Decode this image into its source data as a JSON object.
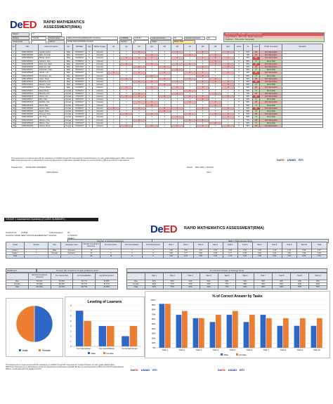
{
  "brand": {
    "logo_dep": "De",
    "logo_ed": "ED"
  },
  "page1": {
    "title_line1": "RAPID MATHEMATICS",
    "title_line2": "ASSESSMENT(RMA)",
    "info": {
      "region_label": "Region",
      "region_value": "XI",
      "division_label": "Division",
      "division_value": "TAGUM",
      "school_label": "School Name",
      "school_value": "NEW VISAYAS ELEMENTARY SCHOOL",
      "lrn_label": "LORENE",
      "lrn_value": "125794",
      "class_label": "Class Enrollment",
      "class_value": "32",
      "grade_label": "Grade Level",
      "grade_value": "1",
      "adviser_label": "Adviser",
      "adviser_value": "ROSE ANN HORTERA AGAPAY",
      "section_label": "Section",
      "section_value": "1",
      "test_label": "Number Assessed",
      "test_value": "26",
      "status_label": "Status",
      "status_value": "Below 75%"
    },
    "legend_notes": [
      "Not Proficient - 0%-49% / Critical intervention",
      "Low Proficient - 50%-74% / Needs intervention",
      "Proficient - 75%-100% / Not at Risk"
    ],
    "columns": [
      "No.",
      "LRN",
      "Name of Learner",
      "Sex",
      "Birthdate",
      "Age",
      "Mother Tongue",
      "Q1",
      "Q2",
      "Q3",
      "Q4",
      "Q5",
      "Q6",
      "Q7",
      "Q8",
      "Q9",
      "Q10",
      "Score",
      "%",
      "Level",
      "Profile of Learner",
      "Remarks"
    ],
    "rows": [
      [
        "1",
        "126521150001",
        "Aguilar, Andrei",
        "Male",
        "03/26/2017",
        "6",
        "Cebuano",
        "1",
        "1",
        "0",
        "1",
        "1",
        "0",
        "1",
        "0",
        "1",
        "0",
        "6",
        "60%",
        "LP",
        "For Intervention",
        ""
      ],
      [
        "2",
        "126521150002",
        "Aliño, Kenneth",
        "Male",
        "05/12/2017",
        "6",
        "Cebuano",
        "1",
        "1",
        "1",
        "0",
        "1",
        "1",
        "0",
        "1",
        "0",
        "1",
        "7",
        "70%",
        "LP",
        "For Intervention",
        ""
      ],
      [
        "3",
        "126521150003",
        "Baring, James",
        "Male",
        "01/09/2017",
        "6",
        "Cebuano",
        "1",
        "0",
        "0",
        "0",
        "1",
        "0",
        "1",
        "0",
        "0",
        "0",
        "3",
        "30%",
        "NP",
        "For Intervention",
        ""
      ],
      [
        "4",
        "126521150004",
        "Cabrera, John",
        "Male",
        "07/18/2017",
        "6",
        "Cebuano",
        "1",
        "1",
        "1",
        "1",
        "1",
        "1",
        "1",
        "1",
        "0",
        "1",
        "9",
        "90%",
        "P",
        "Not at Risk",
        ""
      ],
      [
        "5",
        "126521150005",
        "Dela Cruz, Mark",
        "Male",
        "11/03/2016",
        "7",
        "Cebuano",
        "1",
        "0",
        "1",
        "0",
        "1",
        "0",
        "0",
        "1",
        "0",
        "0",
        "4",
        "40%",
        "NP",
        "For Intervention",
        ""
      ],
      [
        "6",
        "126521150006",
        "Espinosa, Carl",
        "Male",
        "02/27/2017",
        "6",
        "Cebuano",
        "1",
        "1",
        "0",
        "1",
        "0",
        "1",
        "1",
        "0",
        "1",
        "0",
        "6",
        "60%",
        "LP",
        "For Intervention",
        ""
      ],
      [
        "7",
        "126521150007",
        "Fernandez, Paul",
        "Male",
        "09/14/2017",
        "6",
        "Cebuano",
        "1",
        "1",
        "1",
        "1",
        "1",
        "0",
        "1",
        "1",
        "1",
        "1",
        "9",
        "90%",
        "P",
        "Not at Risk",
        ""
      ],
      [
        "8",
        "126521150008",
        "Garcia, Luis",
        "Male",
        "04/05/2017",
        "6",
        "Cebuano",
        "0",
        "1",
        "0",
        "1",
        "0",
        "1",
        "0",
        "0",
        "1",
        "0",
        "4",
        "40%",
        "NP",
        "For Intervention",
        ""
      ],
      [
        "9",
        "126521150009",
        "Hernandez, Jay",
        "Male",
        "06/22/2017",
        "6",
        "Cebuano",
        "1",
        "1",
        "1",
        "0",
        "1",
        "1",
        "1",
        "0",
        "1",
        "1",
        "8",
        "80%",
        "P",
        "Not at Risk",
        ""
      ],
      [
        "10",
        "126521150010",
        "Lopez, Ryan",
        "Male",
        "12/01/2016",
        "7",
        "Cebuano",
        "1",
        "0",
        "1",
        "1",
        "0",
        "1",
        "0",
        "1",
        "0",
        "1",
        "6",
        "60%",
        "LP",
        "For Intervention",
        ""
      ],
      [
        "11",
        "126521150011",
        "Mendoza, Kyle",
        "Male",
        "08/19/2017",
        "6",
        "Cebuano",
        "1",
        "1",
        "0",
        "0",
        "1",
        "0",
        "1",
        "0",
        "0",
        "0",
        "4",
        "40%",
        "NP",
        "For Intervention",
        ""
      ],
      [
        "12",
        "126521150012",
        "Navarro, Sean",
        "Male",
        "03/30/2017",
        "6",
        "Cebuano",
        "1",
        "1",
        "1",
        "1",
        "0",
        "1",
        "1",
        "1",
        "1",
        "0",
        "8",
        "80%",
        "P",
        "Not at Risk",
        ""
      ],
      [
        "13",
        "126521150013",
        "Ortega, Miguel",
        "Male",
        "10/10/2017",
        "6",
        "Cebuano",
        "1",
        "0",
        "1",
        "0",
        "1",
        "0",
        "1",
        "0",
        "1",
        "0",
        "5",
        "50%",
        "LP",
        "For Intervention",
        ""
      ],
      [
        "14",
        "126521150014",
        "Abad, Maria",
        "Female",
        "01/25/2017",
        "6",
        "Cebuano",
        "1",
        "1",
        "1",
        "1",
        "1",
        "1",
        "0",
        "1",
        "1",
        "1",
        "9",
        "90%",
        "P",
        "Not at Risk",
        ""
      ],
      [
        "15",
        "126521150015",
        "Bautista, Ana",
        "Female",
        "05/06/2017",
        "6",
        "Cebuano",
        "1",
        "1",
        "0",
        "1",
        "1",
        "0",
        "1",
        "1",
        "0",
        "1",
        "7",
        "70%",
        "LP",
        "For Intervention",
        ""
      ],
      [
        "16",
        "126521150016",
        "Castro, Joy",
        "Female",
        "07/11/2017",
        "6",
        "Cebuano",
        "1",
        "0",
        "0",
        "1",
        "0",
        "1",
        "0",
        "0",
        "1",
        "0",
        "4",
        "40%",
        "NP",
        "For Intervention",
        ""
      ],
      [
        "17",
        "126521150017",
        "Diaz, Kate",
        "Female",
        "09/02/2017",
        "6",
        "Cebuano",
        "1",
        "1",
        "1",
        "1",
        "1",
        "1",
        "1",
        "0",
        "1",
        "1",
        "9",
        "90%",
        "P",
        "Not at Risk",
        ""
      ],
      [
        "18",
        "126521150018",
        "Estrada, Liza",
        "Female",
        "02/14/2017",
        "6",
        "Cebuano",
        "1",
        "1",
        "0",
        "0",
        "1",
        "1",
        "0",
        "1",
        "0",
        "1",
        "6",
        "60%",
        "LP",
        "For Intervention",
        ""
      ],
      [
        "19",
        "126521150019",
        "Flores, Mia",
        "Female",
        "04/21/2017",
        "6",
        "Cebuano",
        "1",
        "1",
        "1",
        "0",
        "1",
        "1",
        "1",
        "1",
        "0",
        "1",
        "8",
        "80%",
        "P",
        "Not at Risk",
        ""
      ],
      [
        "20",
        "126521150020",
        "Gomez, Nina",
        "Female",
        "06/08/2017",
        "6",
        "Cebuano",
        "0",
        "1",
        "0",
        "1",
        "0",
        "0",
        "1",
        "0",
        "1",
        "0",
        "4",
        "40%",
        "NP",
        "For Intervention",
        ""
      ],
      [
        "21",
        "126521150021",
        "Ilagan, Rose",
        "Female",
        "08/30/2017",
        "6",
        "Cebuano",
        "1",
        "1",
        "1",
        "1",
        "0",
        "1",
        "1",
        "1",
        "1",
        "1",
        "9",
        "90%",
        "P",
        "Not at Risk",
        ""
      ],
      [
        "22",
        "126521150022",
        "Jimenez, Sara",
        "Female",
        "11/19/2016",
        "7",
        "Cebuano",
        "1",
        "0",
        "1",
        "0",
        "1",
        "1",
        "0",
        "1",
        "0",
        "0",
        "5",
        "50%",
        "LP",
        "For Intervention",
        ""
      ],
      [
        "23",
        "126521150023",
        "Lim, Tina",
        "Female",
        "03/03/2017",
        "6",
        "Cebuano",
        "1",
        "1",
        "1",
        "1",
        "1",
        "0",
        "1",
        "1",
        "1",
        "0",
        "8",
        "80%",
        "P",
        "Not at Risk",
        ""
      ],
      [
        "24",
        "126521150024",
        "Morales, Una",
        "Female",
        "05/27/2017",
        "6",
        "Cebuano",
        "1",
        "1",
        "0",
        "1",
        "1",
        "1",
        "0",
        "0",
        "1",
        "1",
        "7",
        "70%",
        "LP",
        "For Intervention",
        ""
      ],
      [
        "25",
        "126521150025",
        "Ramos, Vina",
        "Female",
        "07/07/2017",
        "6",
        "Cebuano",
        "1",
        "1",
        "1",
        "1",
        "1",
        "1",
        "1",
        "1",
        "0",
        "1",
        "9",
        "90%",
        "P",
        "Not at Risk",
        ""
      ],
      [
        "26",
        "126521150026",
        "Santos, Wena",
        "Female",
        "10/24/2017",
        "6",
        "Cebuano",
        "1",
        "0",
        "1",
        "0",
        "1",
        "0",
        "1",
        "0",
        "1",
        "0",
        "5",
        "50%",
        "LP",
        "For Intervention",
        ""
      ]
    ],
    "footnote_1": "This Assessment is implemented with the assistance of USAID through RTI International / DepEd Program for early grade Mathematics (ABC+ Program).",
    "footnote_2": "RMA Tools Development is administered under the Department of Education (DepEd) Bureau of Learning Delivery (BLD) and the RTI International.",
    "prepared_label": "Prepared by:",
    "prepared_name": "ROSE ANN HORTERA",
    "noted_label": "Noted:",
    "noted_name": "MAY ANN Y. ROSAS",
    "designation_1": "Class Adviser",
    "designation_2": "SH-1",
    "logo_usaid": "USAID",
    "logo_rti": "RTI"
  },
  "page2": {
    "section_bar": "GRADE 1 Assessment Summary (CLASS SUMMARY)",
    "title": "RAPID MATHEMATICS ASSESSMENT(RMA)",
    "school_id_label": "SCHOOL ID:",
    "school_id_value": "125794",
    "school_name_label": "SCHOOL NAME:",
    "school_name_value": "NEW VISAYAS ELEMENTARY SCHOOL",
    "total_assessed_label": "Total Assessed:",
    "total_assessed_value": "26",
    "region_label": "Region:",
    "region_value": "XI-TAGUM",
    "tagalog_label": "Tagalog",
    "num_learners_header": "Number of Learners Assessed",
    "score_header": "Table 1 Total Average Score",
    "summary_columns": [
      "Grade",
      "Section",
      "Sex",
      "Language Used",
      "Number of Learners Assessed",
      "For Intervention",
      "For Consolidation",
      "For Enhancement",
      "Task 1",
      "Task 2",
      "Task 3",
      "Task 4",
      "Task 5",
      "Task 6",
      "Task 7",
      "Task 8",
      "Task 9",
      "Task 10",
      "Total"
    ],
    "summary_rows": [
      [
        "Grade 1",
        "1",
        "Male",
        "Cebuano",
        "13",
        "7",
        "4",
        "2",
        "0.92",
        "0.69",
        "0.62",
        "0.54",
        "0.69",
        "0.54",
        "0.69",
        "0.46",
        "0.46",
        "0.46",
        "6.07"
      ],
      [
        "Grade 1",
        "1",
        "Female",
        "Cebuano",
        "13",
        "5",
        "4",
        "4",
        "0.92",
        "0.77",
        "0.62",
        "0.69",
        "0.77",
        "0.69",
        "0.62",
        "0.62",
        "0.62",
        "0.62",
        "6.94"
      ],
      [
        "Total",
        "",
        "",
        "",
        "26",
        "12",
        "8",
        "6",
        "0.92",
        "0.73",
        "0.62",
        "0.62",
        "0.73",
        "0.62",
        "0.65",
        "0.54",
        "0.54",
        "0.54",
        "6.51"
      ]
    ],
    "dashboard_title": "Dashboard",
    "dashboard_sub": "Percent (%) of learners of each proficiency level",
    "dash_columns": [
      "",
      "Percent of Learners assessed",
      "For Intervention",
      "For Consolidation",
      "For Enhancement"
    ],
    "dash_rows": [
      [
        "Male",
        "50.00%",
        "53.85%",
        "30.77%",
        "15.38%"
      ],
      [
        "Female",
        "50.00%",
        "38.46%",
        "30.77%",
        "30.77%"
      ],
      [
        "Total",
        "100.00%",
        "46.15%",
        "30.77%",
        "23.08%"
      ]
    ],
    "correct_title": "% of Correct Answer by Tasks",
    "correct_sub": "% of Correct Answer on Average Score",
    "correct_columns": [
      "",
      "Task 1",
      "Task 2",
      "Task 3",
      "Task 4",
      "Task 5",
      "Task 6",
      "Task 7",
      "Task 8",
      "Task 9",
      "Task 10"
    ],
    "correct_rows": [
      [
        "Male",
        "92%",
        "69%",
        "62%",
        "54%",
        "69%",
        "54%",
        "69%",
        "46%",
        "46%",
        "46%"
      ],
      [
        "Female",
        "92%",
        "77%",
        "62%",
        "69%",
        "77%",
        "69%",
        "62%",
        "62%",
        "62%",
        "62%"
      ],
      [
        "Total",
        "92%",
        "73%",
        "62%",
        "62%",
        "73%",
        "62%",
        "65%",
        "54%",
        "54%",
        "54%"
      ]
    ],
    "footnote_1": "This Assessment is implemented with the assistance of USAID through RTI International / DepEd Program for early grade Mathematics.",
    "footnote_2": "RMA Tools Development is administered under the Department of Education (DepEd) Bureau of Learning Delivery (BLD) and the RTI International.",
    "footnote_3": "RMA is coordinated with the DepEd and RTI."
  },
  "chart_data": [
    {
      "type": "pie",
      "categories": [
        "Male",
        "Female"
      ],
      "values": [
        50,
        50
      ],
      "colors": [
        "#2e67c8",
        "#ed7d31"
      ]
    },
    {
      "type": "bar",
      "title": "Leveling of Learners",
      "categories": [
        "For Intervention",
        "For Consolidation",
        "For Enhancement"
      ],
      "series": [
        {
          "name": "Male",
          "values": [
            7,
            4,
            2
          ],
          "color": "#2e67c8"
        },
        {
          "name": "Female",
          "values": [
            5,
            4,
            4
          ],
          "color": "#ed7d31"
        }
      ],
      "ylim": [
        0,
        8
      ]
    },
    {
      "type": "bar",
      "title": "% of Correct Answer by Tasks",
      "categories": [
        "Task 1",
        "Task 2",
        "Task 3",
        "Task 4",
        "Task 5",
        "Task 6",
        "Task 7",
        "Task 8",
        "Task 9",
        "Task 10"
      ],
      "series": [
        {
          "name": "Male",
          "values": [
            92,
            69,
            62,
            54,
            69,
            54,
            69,
            46,
            46,
            46
          ],
          "color": "#2e67c8"
        },
        {
          "name": "Female",
          "values": [
            92,
            77,
            62,
            69,
            77,
            69,
            62,
            62,
            62,
            62
          ],
          "color": "#ed7d31"
        }
      ],
      "ylim": [
        0,
        100
      ]
    }
  ]
}
